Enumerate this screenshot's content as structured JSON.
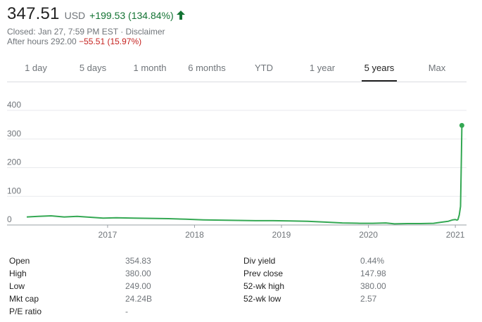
{
  "quote": {
    "price": "347.51",
    "currency": "USD",
    "change": "+199.53 (134.84%)",
    "change_color": "#137333",
    "arrow_icon": "arrow-up-icon",
    "closed_text": "Closed: Jan 27, 7:59 PM EST · Disclaimer",
    "after_hours_label": "After hours 292.00",
    "after_hours_change": "−55.51 (15.97%)",
    "after_hours_color": "#c5221f"
  },
  "tabs": [
    {
      "label": "1 day",
      "active": false
    },
    {
      "label": "5 days",
      "active": false
    },
    {
      "label": "1 month",
      "active": false
    },
    {
      "label": "6 months",
      "active": false
    },
    {
      "label": "YTD",
      "active": false
    },
    {
      "label": "1 year",
      "active": false
    },
    {
      "label": "5 years",
      "active": true
    },
    {
      "label": "Max",
      "active": false
    }
  ],
  "chart_data": {
    "type": "line",
    "line_color": "#34a853",
    "grid": true,
    "ylim": [
      0,
      400
    ],
    "y_ticks": [
      "0",
      "100",
      "200",
      "300",
      "400"
    ],
    "x_ticks": [
      "2017",
      "2018",
      "2019",
      "2020",
      "2021"
    ],
    "xlim": [
      2016.07,
      2021.08
    ],
    "series": [
      {
        "x": [
          2016.07,
          2016.2,
          2016.35,
          2016.5,
          2016.65,
          2016.8,
          2016.95,
          2017.1,
          2017.3,
          2017.5,
          2017.7,
          2017.9,
          2018.1,
          2018.3,
          2018.5,
          2018.7,
          2018.9,
          2019.1,
          2019.3,
          2019.5,
          2019.7,
          2019.9,
          2020.05,
          2020.2,
          2020.3,
          2020.45,
          2020.6,
          2020.75,
          2020.85,
          2020.92,
          2020.97,
          2021.0,
          2021.02,
          2021.03,
          2021.045,
          2021.06,
          2021.065,
          2021.07,
          2021.075
        ],
        "y": [
          28,
          30,
          32,
          28,
          30,
          27,
          24,
          25,
          24,
          23,
          22,
          20,
          18,
          17,
          16,
          15,
          15,
          14,
          13,
          10,
          7,
          6,
          6,
          7,
          4,
          5,
          5,
          6,
          10,
          13,
          18,
          19,
          17,
          19,
          35,
          65,
          150,
          250,
          347.51
        ]
      }
    ]
  },
  "stats": {
    "left": [
      {
        "label": "Open",
        "value": "354.83"
      },
      {
        "label": "High",
        "value": "380.00"
      },
      {
        "label": "Low",
        "value": "249.00"
      },
      {
        "label": "Mkt cap",
        "value": "24.24B"
      },
      {
        "label": "P/E ratio",
        "value": "-"
      }
    ],
    "right": [
      {
        "label": "Div yield",
        "value": "0.44%"
      },
      {
        "label": "Prev close",
        "value": "147.98"
      },
      {
        "label": "52-wk high",
        "value": "380.00"
      },
      {
        "label": "52-wk low",
        "value": "2.57"
      }
    ]
  }
}
